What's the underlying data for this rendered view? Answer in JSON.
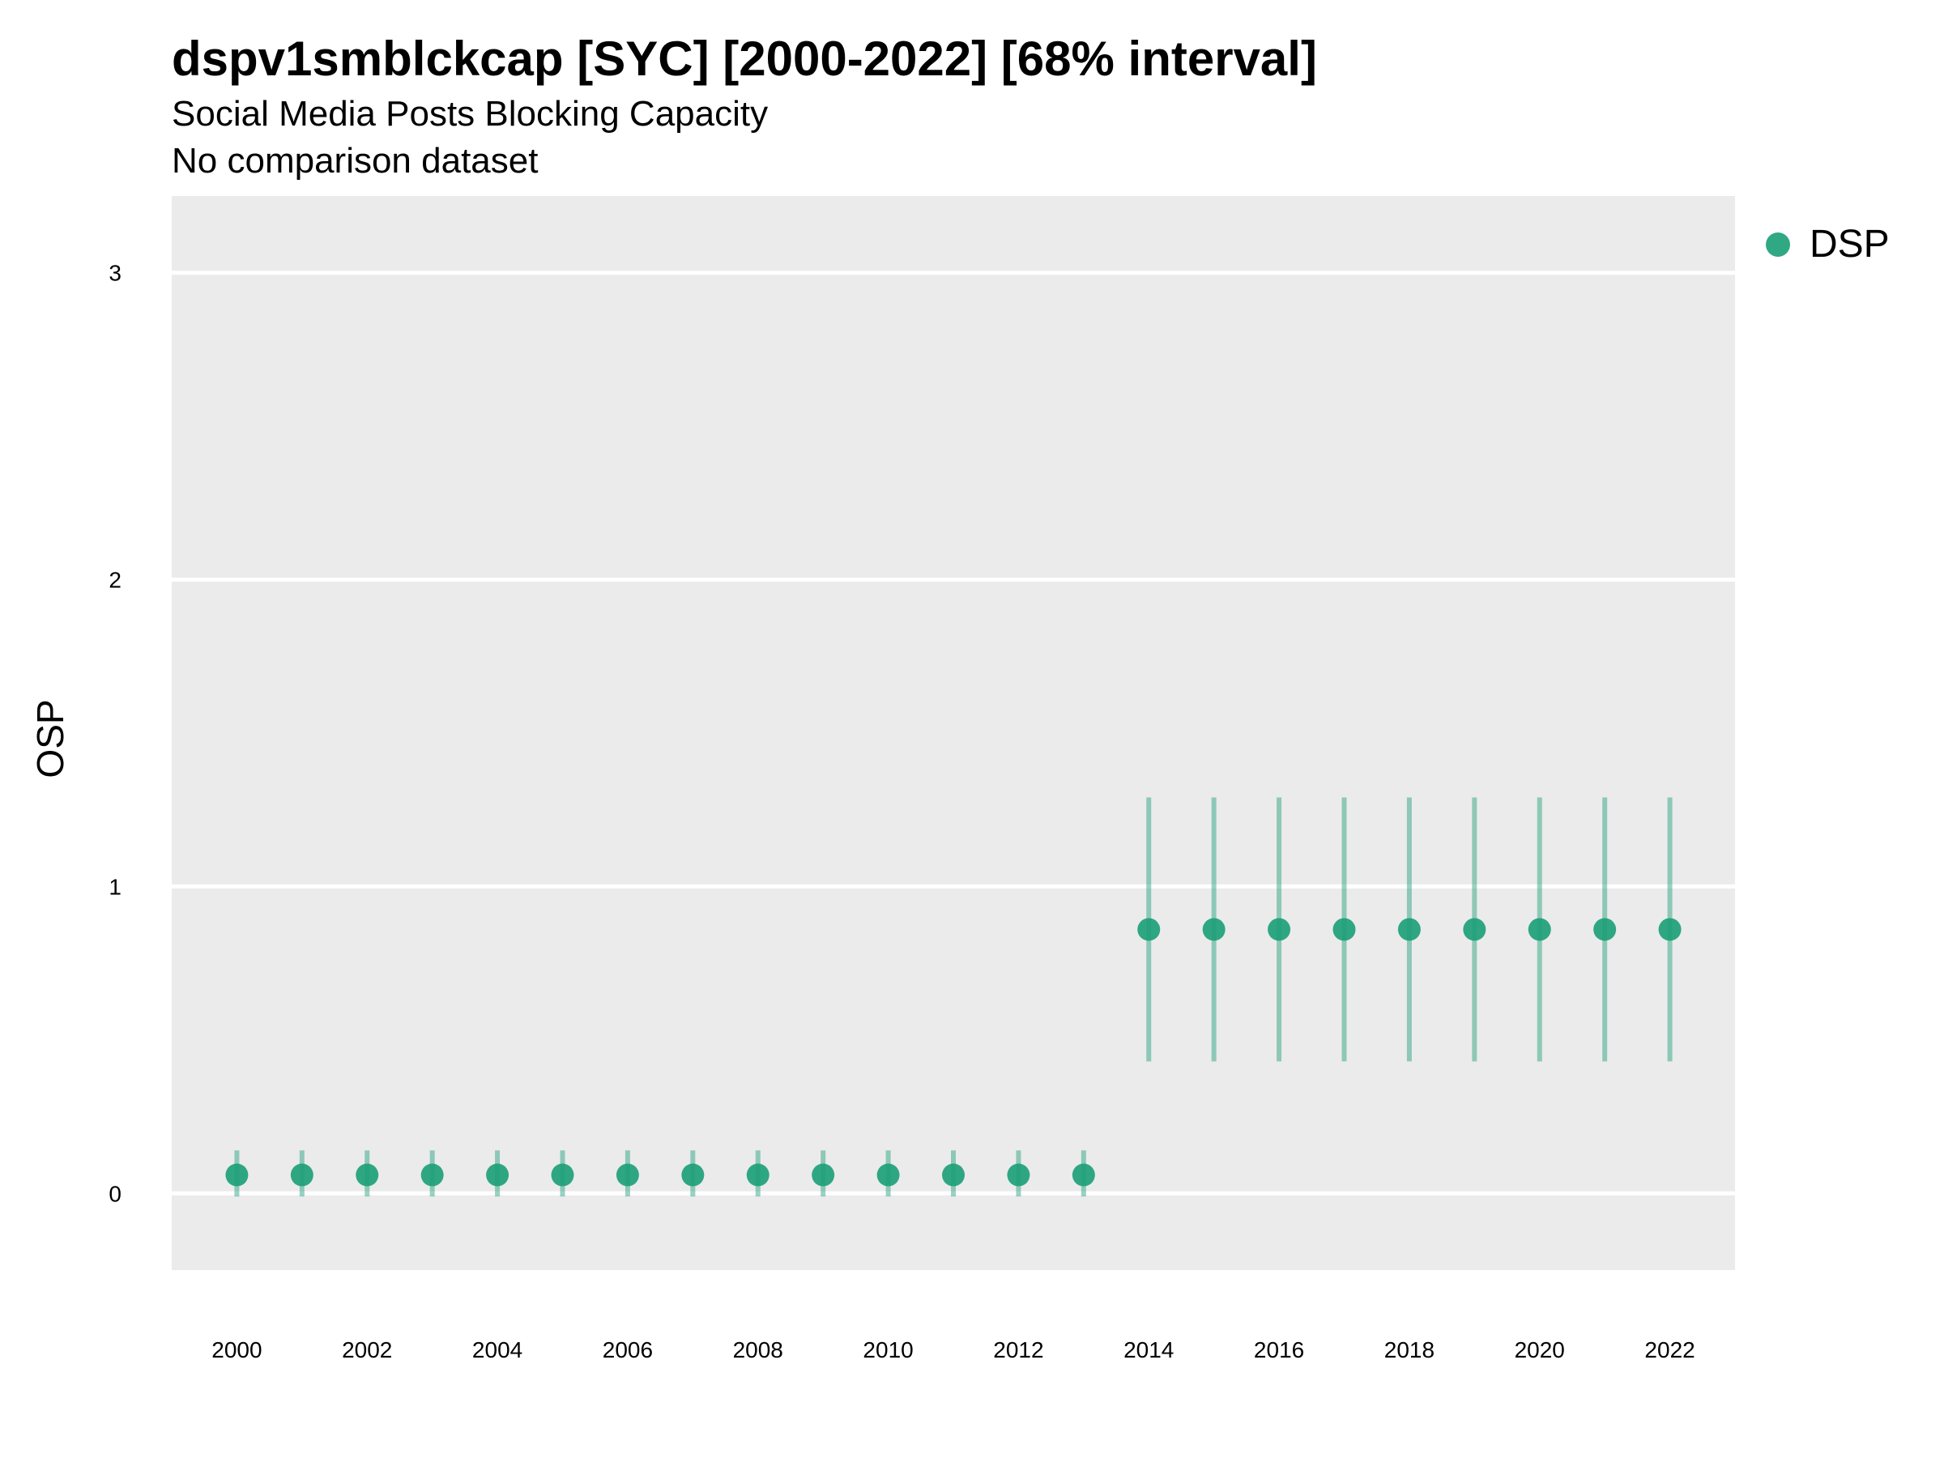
{
  "title": "dspv1smblckcap [SYC] [2000-2022] [68% interval]",
  "subtitle": "Social Media Posts Blocking Capacity",
  "subtitle2": "No comparison dataset",
  "colors": {
    "panel_background": "#EBEBEB",
    "grid": "#FFFFFF",
    "series": "#1B9E77"
  },
  "legend": {
    "position": "top-right",
    "items": [
      {
        "label": "DSP",
        "color": "#1B9E77"
      }
    ]
  },
  "chart_data": {
    "type": "scatter",
    "title": "dspv1smblckcap [SYC] [2000-2022] [68% interval]",
    "xlabel": "",
    "ylabel": "OSP",
    "xlim": [
      1999,
      2023
    ],
    "ylim": [
      -0.25,
      3.25
    ],
    "x_ticks": [
      2000,
      2002,
      2004,
      2006,
      2008,
      2010,
      2012,
      2014,
      2016,
      2018,
      2020,
      2022
    ],
    "y_ticks": [
      0,
      1,
      2,
      3
    ],
    "grid": true,
    "legend_position": "top-right",
    "series": [
      {
        "name": "DSP",
        "color": "#1B9E77",
        "x": [
          2000,
          2001,
          2002,
          2003,
          2004,
          2005,
          2006,
          2007,
          2008,
          2009,
          2010,
          2011,
          2012,
          2013,
          2014,
          2015,
          2016,
          2017,
          2018,
          2019,
          2020,
          2021,
          2022
        ],
        "y": [
          0.06,
          0.06,
          0.06,
          0.06,
          0.06,
          0.06,
          0.06,
          0.06,
          0.06,
          0.06,
          0.06,
          0.06,
          0.06,
          0.06,
          0.86,
          0.86,
          0.86,
          0.86,
          0.86,
          0.86,
          0.86,
          0.86,
          0.86
        ],
        "lower": [
          -0.01,
          -0.01,
          -0.01,
          -0.01,
          -0.01,
          -0.01,
          -0.01,
          -0.01,
          -0.01,
          -0.01,
          -0.01,
          -0.01,
          -0.01,
          -0.01,
          0.43,
          0.43,
          0.43,
          0.43,
          0.43,
          0.43,
          0.43,
          0.43,
          0.43
        ],
        "upper": [
          0.14,
          0.14,
          0.14,
          0.14,
          0.14,
          0.14,
          0.14,
          0.14,
          0.14,
          0.14,
          0.14,
          0.14,
          0.14,
          0.14,
          1.29,
          1.29,
          1.29,
          1.29,
          1.29,
          1.29,
          1.29,
          1.29,
          1.29
        ]
      }
    ]
  }
}
